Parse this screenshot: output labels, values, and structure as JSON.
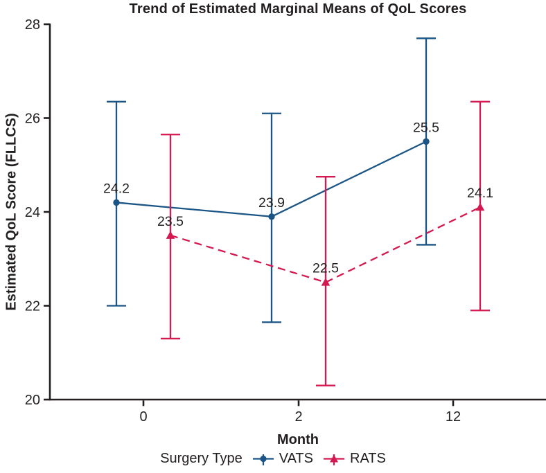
{
  "chart_data": {
    "type": "line",
    "title": "Trend of Estimated Marginal Means of QoL Scores",
    "xlabel": "Month",
    "ylabel": "Estimated QoL Score (FLLCS)",
    "x_categories": [
      "0",
      "2",
      "12"
    ],
    "y_ticks": [
      20,
      22,
      24,
      26,
      28
    ],
    "ylim": [
      20,
      28
    ],
    "grid": false,
    "legend": {
      "title": "Surgery Type",
      "position": "bottom"
    },
    "axis_color": "#231f20",
    "text_color": "#231f20",
    "series": [
      {
        "name": "VATS",
        "color": "#1b5585",
        "marker": "circle",
        "line_style": "solid",
        "values": [
          24.2,
          23.9,
          25.5
        ],
        "point_labels": [
          "24.2",
          "23.9",
          "25.5"
        ],
        "ci_low": [
          22.0,
          21.65,
          23.3
        ],
        "ci_high": [
          26.35,
          26.1,
          27.7
        ]
      },
      {
        "name": "RATS",
        "color": "#d41950",
        "marker": "triangle",
        "line_style": "dashed",
        "values": [
          23.5,
          22.5,
          24.1
        ],
        "point_labels": [
          "23.5",
          "22.5",
          "24.1"
        ],
        "ci_low": [
          21.3,
          20.3,
          21.9
        ],
        "ci_high": [
          25.65,
          24.75,
          26.35
        ]
      }
    ]
  }
}
